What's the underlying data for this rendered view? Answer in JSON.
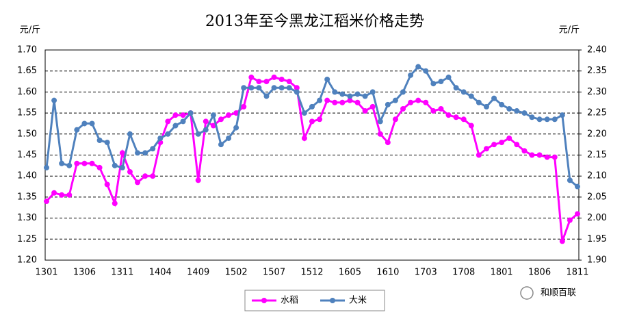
{
  "chart_data": {
    "type": "line",
    "title": "2013年至今黑龙江稻米价格走势",
    "y_label": "元/斤",
    "y2_label": "元/斤",
    "watermark": "和顺百联",
    "categories": [
      "1301",
      null,
      null,
      null,
      null,
      "1306",
      null,
      null,
      null,
      null,
      "1311",
      null,
      null,
      null,
      null,
      "1404",
      null,
      null,
      null,
      null,
      "1409",
      null,
      null,
      null,
      null,
      "1502",
      null,
      null,
      null,
      null,
      "1507",
      null,
      null,
      null,
      null,
      "1512",
      null,
      null,
      null,
      null,
      "1605",
      null,
      null,
      null,
      null,
      "1610",
      null,
      null,
      null,
      null,
      "1703",
      null,
      null,
      null,
      null,
      "1708",
      null,
      null,
      null,
      null,
      "1801",
      null,
      null,
      null,
      null,
      "1806",
      null,
      null,
      null,
      null,
      "1811"
    ],
    "series": [
      {
        "name": "水稻",
        "color": "#ff00ff",
        "axis": "y",
        "values": [
          1.34,
          1.36,
          1.355,
          1.355,
          1.43,
          1.43,
          1.43,
          1.42,
          1.38,
          1.335,
          1.455,
          1.41,
          1.385,
          1.4,
          1.4,
          1.48,
          1.53,
          1.545,
          1.545,
          1.55,
          1.39,
          1.53,
          1.52,
          1.535,
          1.545,
          1.55,
          1.565,
          1.635,
          1.625,
          1.625,
          1.635,
          1.63,
          1.625,
          1.61,
          1.49,
          1.53,
          1.535,
          1.58,
          1.575,
          1.575,
          1.58,
          1.575,
          1.555,
          1.565,
          1.5,
          1.48,
          1.535,
          1.56,
          1.575,
          1.58,
          1.575,
          1.555,
          1.56,
          1.545,
          1.54,
          1.535,
          1.52,
          1.45,
          1.465,
          1.475,
          1.48,
          1.49,
          1.475,
          1.46,
          1.45,
          1.45,
          1.445,
          1.445,
          1.245,
          1.295,
          1.31
        ]
      },
      {
        "name": "大米",
        "color": "#4f81bd",
        "axis": "y2",
        "values": [
          2.12,
          2.28,
          2.13,
          2.125,
          2.21,
          2.225,
          2.225,
          2.185,
          2.18,
          2.125,
          2.12,
          2.2,
          2.155,
          2.155,
          2.165,
          2.19,
          2.2,
          2.22,
          2.23,
          2.25,
          2.2,
          2.21,
          2.245,
          2.175,
          2.19,
          2.215,
          2.31,
          2.31,
          2.31,
          2.29,
          2.31,
          2.31,
          2.31,
          2.3,
          2.25,
          2.265,
          2.28,
          2.33,
          2.3,
          2.295,
          2.29,
          2.295,
          2.29,
          2.3,
          2.23,
          2.27,
          2.28,
          2.3,
          2.34,
          2.36,
          2.35,
          2.32,
          2.325,
          2.335,
          2.31,
          2.3,
          2.29,
          2.275,
          2.265,
          2.285,
          2.27,
          2.26,
          2.255,
          2.25,
          2.24,
          2.235,
          2.235,
          2.235,
          2.245,
          2.09,
          2.075
        ]
      }
    ],
    "ylim": [
      1.2,
      1.7
    ],
    "yticks": [
      {
        "value": 1.2,
        "label": "1.20"
      },
      1.25,
      {
        "value": 1.3,
        "label": "1.30"
      },
      1.35,
      {
        "value": 1.4,
        "label": "1.40"
      },
      1.45,
      {
        "value": 1.5,
        "label": "1.50"
      },
      1.55,
      {
        "value": 1.6,
        "label": "1.60"
      },
      1.65,
      {
        "value": 1.7,
        "label": "1.70"
      }
    ],
    "y2lim": [
      1.9,
      2.4
    ],
    "y2ticks": [
      {
        "value": 1.9,
        "label": "1.90"
      },
      1.95,
      {
        "value": 2.0,
        "label": "2.00"
      },
      2.05,
      {
        "value": 2.1,
        "label": "2.10"
      },
      2.15,
      {
        "value": 2.2,
        "label": "2.20"
      },
      2.25,
      {
        "value": 2.3,
        "label": "2.30"
      },
      2.35,
      {
        "value": 2.4,
        "label": "2.40"
      }
    ],
    "grid": true
  }
}
